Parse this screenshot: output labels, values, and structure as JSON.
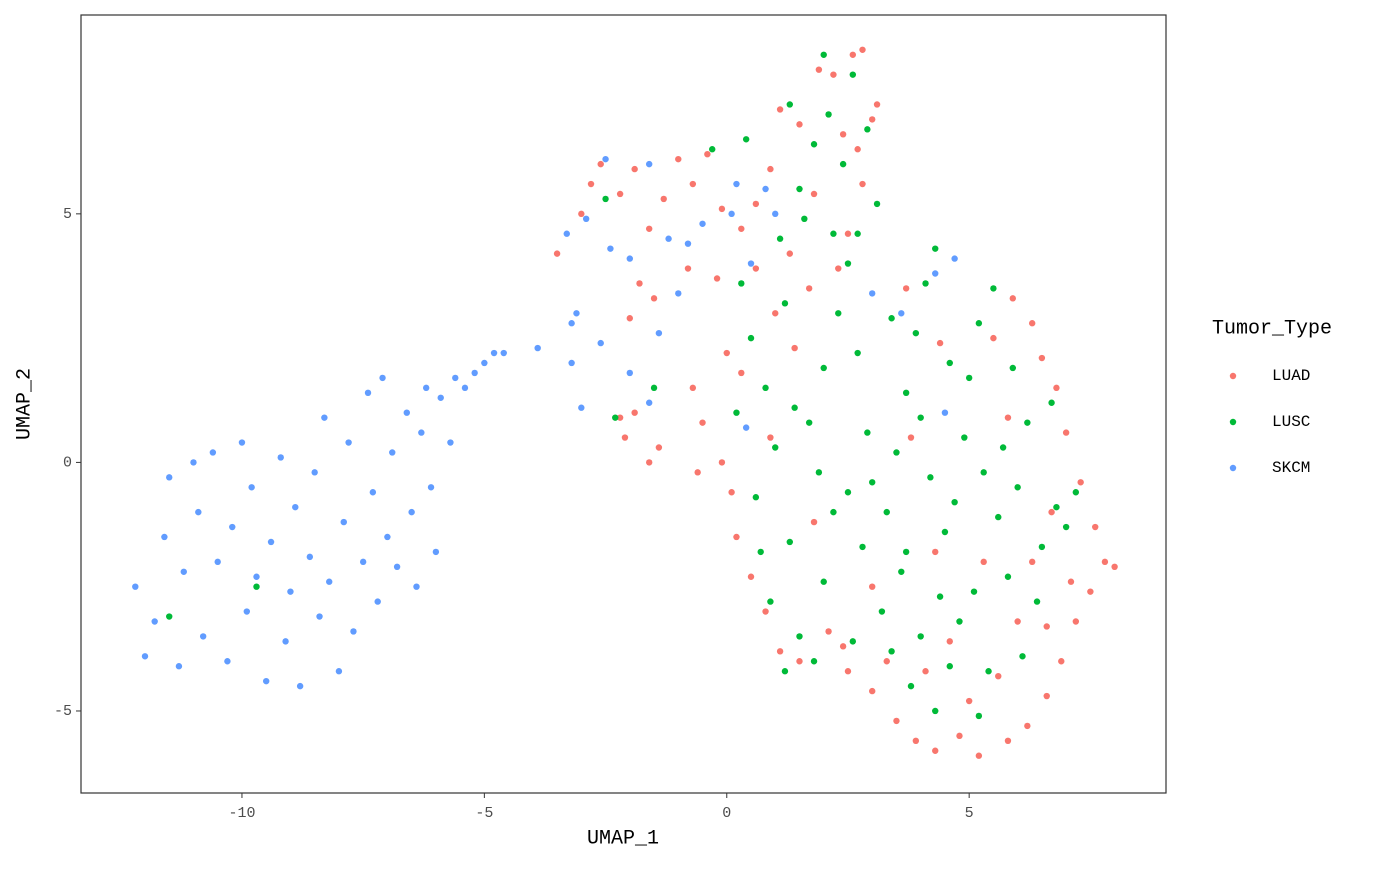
{
  "chart_data": {
    "type": "scatter",
    "xlabel": "UMAP_1",
    "ylabel": "UMAP_2",
    "legend_title": "Tumor_Type",
    "xlim": [
      -13.32,
      9.06
    ],
    "ylim": [
      -6.65,
      9.0
    ],
    "xticks": [
      -10,
      -5,
      0,
      5
    ],
    "yticks": [
      -5,
      0,
      5
    ],
    "grid": false,
    "legend": "right",
    "series": [
      {
        "name": "LUAD",
        "color": "#F8766D",
        "x": [
          -3.5,
          -3.0,
          -2.8,
          -2.6,
          -2.2,
          -1.9,
          -1.6,
          -1.3,
          -1.0,
          -0.7,
          -0.4,
          -0.1,
          0.3,
          0.6,
          -1.8,
          -2.0,
          -1.5,
          -0.8,
          -0.2,
          -1.9,
          -2.1,
          -1.4,
          -0.5,
          -0.1,
          -0.6,
          -1.6,
          -0.7,
          0.0,
          0.3,
          0.1,
          0.2,
          0.5,
          0.8,
          1.1,
          1.5,
          2.1,
          2.5,
          3.0,
          3.5,
          3.9,
          4.3,
          4.8,
          5.2,
          5.8,
          6.2,
          6.6,
          6.9,
          7.2,
          7.5,
          7.8,
          8.0,
          7.6,
          7.3,
          7.0,
          6.8,
          6.5,
          6.3,
          5.9,
          5.5,
          6.0,
          5.6,
          5.0,
          4.6,
          5.3,
          6.3,
          6.7,
          4.1,
          3.3,
          2.4,
          6.6,
          7.1,
          0.9,
          1.4,
          1.0,
          0.6,
          1.7,
          2.3,
          2.5,
          2.8,
          2.7,
          3.0,
          3.1,
          2.8,
          2.6,
          2.2,
          1.9,
          1.1,
          1.5,
          2.4,
          1.8,
          0.9,
          1.3,
          3.7,
          4.4,
          3.8,
          4.3,
          3.0,
          1.8,
          5.8,
          -2.2
        ],
        "values": [
          4.2,
          5.0,
          5.6,
          6.0,
          5.4,
          5.9,
          4.7,
          5.3,
          6.1,
          5.6,
          6.2,
          5.1,
          4.7,
          5.2,
          3.6,
          2.9,
          3.3,
          3.9,
          3.7,
          1.0,
          0.5,
          0.3,
          0.8,
          0.0,
          -0.2,
          0.0,
          1.5,
          2.2,
          1.8,
          -0.6,
          -1.5,
          -2.3,
          -3.0,
          -3.8,
          -4.0,
          -3.4,
          -4.2,
          -4.6,
          -5.2,
          -5.6,
          -5.8,
          -5.5,
          -5.9,
          -5.6,
          -5.3,
          -4.7,
          -4.0,
          -3.2,
          -2.6,
          -2.0,
          -2.1,
          -1.3,
          -0.4,
          0.6,
          1.5,
          2.1,
          2.8,
          3.3,
          2.5,
          -3.2,
          -4.3,
          -4.8,
          -3.6,
          -2.0,
          -2.0,
          -1.0,
          -4.2,
          -4.0,
          -3.7,
          -3.3,
          -2.4,
          0.5,
          2.3,
          3.0,
          3.9,
          3.5,
          3.9,
          4.6,
          5.6,
          6.3,
          6.9,
          7.2,
          8.3,
          8.2,
          7.8,
          7.9,
          7.1,
          6.8,
          6.6,
          5.4,
          5.9,
          4.2,
          3.5,
          2.4,
          0.5,
          -1.8,
          -2.5,
          -1.2,
          0.9,
          0.9
        ]
      },
      {
        "name": "LUSC",
        "color": "#00BA38",
        "x": [
          0.5,
          0.8,
          1.2,
          1.0,
          0.6,
          1.3,
          0.9,
          1.5,
          1.8,
          2.0,
          2.2,
          1.7,
          2.0,
          2.3,
          2.5,
          2.7,
          2.9,
          3.0,
          2.8,
          3.2,
          3.4,
          3.6,
          3.3,
          3.5,
          3.7,
          3.9,
          4.1,
          4.3,
          4.0,
          4.2,
          4.5,
          4.4,
          4.6,
          4.8,
          4.7,
          4.9,
          5.0,
          5.2,
          5.5,
          5.3,
          5.6,
          5.8,
          6.0,
          6.2,
          5.9,
          6.5,
          6.4,
          6.1,
          6.8,
          7.0,
          7.2,
          1.5,
          1.8,
          2.1,
          2.0,
          2.6,
          2.9,
          1.3,
          2.4,
          1.6,
          0.4,
          -0.3,
          -2.5,
          -1.5,
          -2.3,
          3.1,
          2.7,
          1.1,
          0.3,
          1.4,
          2.5,
          3.8,
          4.3,
          5.2,
          5.4,
          4.0,
          2.6,
          1.2,
          3.7,
          5.1,
          0.7,
          1.9,
          4.6,
          3.4,
          2.2,
          -9.7,
          -11.5,
          6.7,
          5.7,
          0.2
        ],
        "values": [
          2.5,
          1.5,
          3.2,
          0.3,
          -0.7,
          -1.6,
          -2.8,
          -3.5,
          -4.0,
          -2.4,
          -1.0,
          0.8,
          1.9,
          3.0,
          4.0,
          2.2,
          0.6,
          -0.4,
          -1.7,
          -3.0,
          -3.8,
          -2.2,
          -1.0,
          0.2,
          1.4,
          2.6,
          3.6,
          4.3,
          0.9,
          -0.3,
          -1.4,
          -2.7,
          -4.1,
          -3.2,
          -0.8,
          0.5,
          1.7,
          2.8,
          3.5,
          -0.2,
          -1.1,
          -2.3,
          -0.5,
          0.8,
          1.9,
          -1.7,
          -2.8,
          -3.9,
          -0.9,
          -1.3,
          -0.6,
          5.5,
          6.4,
          7.0,
          8.2,
          7.8,
          6.7,
          7.2,
          6.0,
          4.9,
          6.5,
          6.3,
          5.3,
          1.5,
          0.9,
          5.2,
          4.6,
          4.5,
          3.6,
          1.1,
          -0.6,
          -4.5,
          -5.0,
          -5.1,
          -4.2,
          -3.5,
          -3.6,
          -4.2,
          -1.8,
          -2.6,
          -1.8,
          -0.2,
          2.0,
          2.9,
          4.6,
          -2.5,
          -3.1,
          1.2,
          0.3,
          1.0
        ]
      },
      {
        "name": "SKCM",
        "color": "#619CFF",
        "x": [
          -12.2,
          -12.0,
          -11.8,
          -11.6,
          -11.5,
          -11.3,
          -11.2,
          -11.0,
          -10.9,
          -10.8,
          -10.6,
          -10.5,
          -10.3,
          -10.2,
          -10.0,
          -9.9,
          -9.8,
          -9.7,
          -9.5,
          -9.4,
          -9.2,
          -9.1,
          -9.0,
          -8.9,
          -8.8,
          -8.6,
          -8.5,
          -8.4,
          -8.3,
          -8.2,
          -8.0,
          -7.9,
          -7.8,
          -7.7,
          -7.5,
          -7.4,
          -7.3,
          -7.2,
          -7.1,
          -7.0,
          -6.9,
          -6.8,
          -6.6,
          -6.5,
          -6.4,
          -6.3,
          -6.2,
          -6.1,
          -6.0,
          -5.9,
          -5.7,
          -5.6,
          -5.4,
          -5.2,
          -5.0,
          -4.8,
          -4.6,
          -3.9,
          -3.2,
          -3.1,
          -3.2,
          -3.0,
          -2.6,
          -2.5,
          -2.9,
          -3.3,
          -2.4,
          -2.0,
          -1.6,
          -1.2,
          -0.8,
          -0.5,
          0.1,
          0.2,
          0.5,
          0.8,
          -1.4,
          -2.0,
          1.0,
          3.0,
          4.3,
          4.7,
          3.6,
          4.5,
          -1.0,
          0.4,
          -1.6
        ],
        "values": [
          -2.5,
          -3.9,
          -3.2,
          -1.5,
          -0.3,
          -4.1,
          -2.2,
          0.0,
          -1.0,
          -3.5,
          0.2,
          -2.0,
          -4.0,
          -1.3,
          0.4,
          -3.0,
          -0.5,
          -2.3,
          -4.4,
          -1.6,
          0.1,
          -3.6,
          -2.6,
          -0.9,
          -4.5,
          -1.9,
          -0.2,
          -3.1,
          0.9,
          -2.4,
          -4.2,
          -1.2,
          0.4,
          -3.4,
          -2.0,
          1.4,
          -0.6,
          -2.8,
          1.7,
          -1.5,
          0.2,
          -2.1,
          1.0,
          -1.0,
          -2.5,
          0.6,
          1.5,
          -0.5,
          -1.8,
          1.3,
          0.4,
          1.7,
          1.5,
          1.8,
          2.0,
          2.2,
          2.2,
          2.3,
          2.8,
          3.0,
          2.0,
          1.1,
          2.4,
          6.1,
          4.9,
          4.6,
          4.3,
          4.1,
          6.0,
          4.5,
          4.4,
          4.8,
          5.0,
          5.6,
          4.0,
          5.5,
          2.6,
          1.8,
          5.0,
          3.4,
          3.8,
          4.1,
          3.0,
          1.0,
          3.4,
          0.7,
          1.2
        ]
      }
    ]
  }
}
